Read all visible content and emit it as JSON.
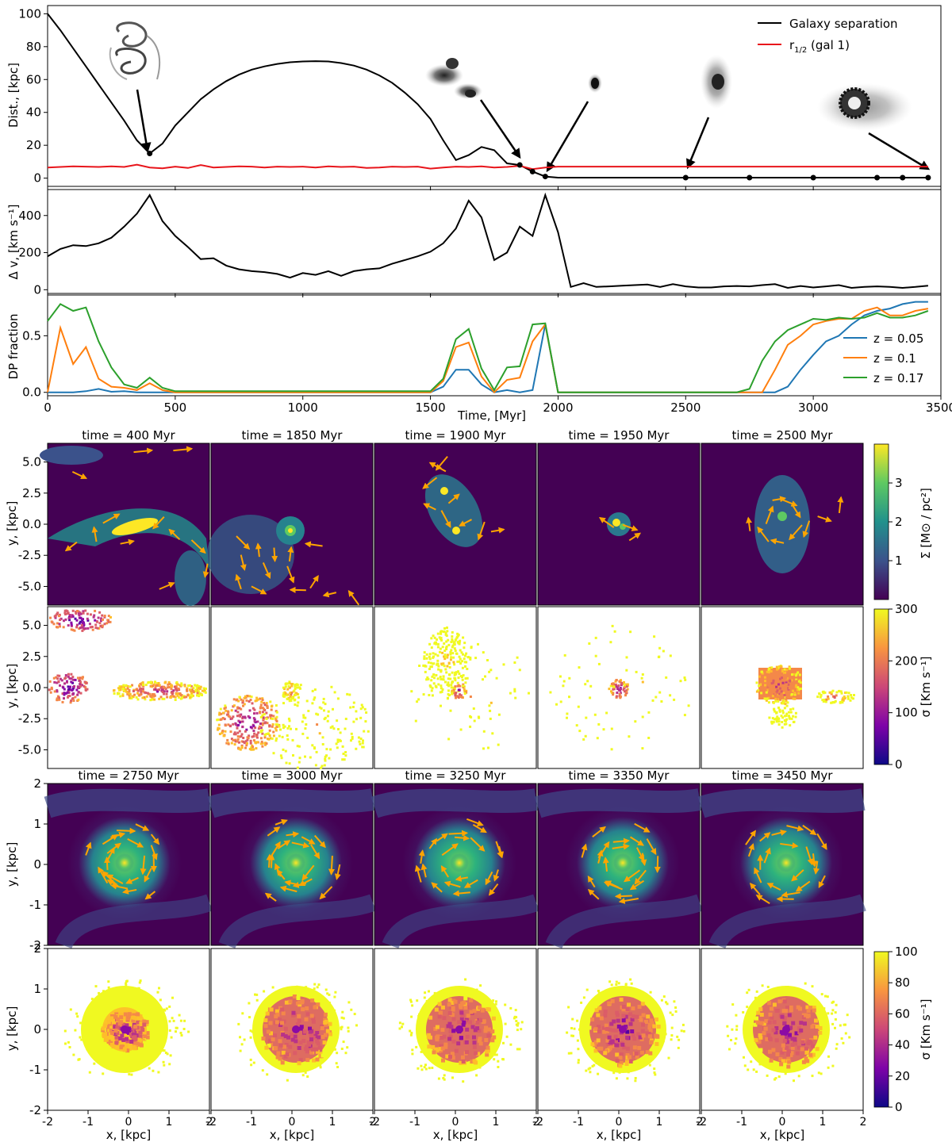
{
  "colors": {
    "black": "#000000",
    "red": "#e8151b",
    "blue": "#1f77b4",
    "orange": "#ff7f0e",
    "green": "#2ca02c",
    "arrow": "#ffa500",
    "viridis_low": "#440154",
    "viridis_mid": "#21918c",
    "viridis_high": "#fde725"
  },
  "chart_data": [
    {
      "type": "line",
      "title": "",
      "xlabel": "",
      "ylabel": "Dist., [kpc]",
      "xlim": [
        0,
        3500
      ],
      "ylim": [
        -5,
        105
      ],
      "yticks": [
        0,
        20,
        40,
        60,
        80,
        100
      ],
      "legend_position": "top-right",
      "series": [
        {
          "name": "Galaxy separation",
          "color": "black",
          "x": [
            0,
            50,
            100,
            150,
            200,
            250,
            300,
            350,
            400,
            450,
            500,
            550,
            600,
            650,
            700,
            750,
            800,
            850,
            900,
            950,
            1000,
            1050,
            1100,
            1150,
            1200,
            1250,
            1300,
            1350,
            1400,
            1450,
            1500,
            1550,
            1600,
            1650,
            1700,
            1750,
            1800,
            1850,
            1900,
            1950,
            2000,
            2100,
            2200,
            2300,
            2400,
            2500,
            2600,
            2700,
            2800,
            2900,
            3000,
            3100,
            3200,
            3300,
            3350,
            3400,
            3450
          ],
          "y": [
            100,
            90,
            79,
            68,
            57,
            46,
            35,
            23,
            15,
            21,
            32,
            40,
            48,
            54,
            59,
            63,
            66,
            68,
            69.5,
            70.5,
            71,
            71.2,
            71,
            70,
            68.5,
            66,
            62.5,
            58,
            52,
            45,
            36,
            23,
            11,
            14,
            19,
            17,
            9,
            8,
            4,
            1,
            0.3,
            0.3,
            0.3,
            0.3,
            0.3,
            0.3,
            0.3,
            0.3,
            0.3,
            0.3,
            0.3,
            0.3,
            0.3,
            0.3,
            0.3,
            0.3,
            0.3
          ]
        },
        {
          "name": "r_1/2 (gal 1)",
          "color": "red",
          "x": [
            0,
            50,
            100,
            150,
            200,
            250,
            300,
            350,
            400,
            450,
            500,
            550,
            600,
            650,
            700,
            750,
            800,
            850,
            900,
            950,
            1000,
            1050,
            1100,
            1150,
            1200,
            1250,
            1300,
            1350,
            1400,
            1450,
            1500,
            1550,
            1600,
            1650,
            1700,
            1750,
            1800,
            1850,
            1900,
            1950,
            2000,
            2100,
            2200,
            2300,
            2400,
            2500,
            2600,
            2700,
            2800,
            2900,
            3000,
            3100,
            3200,
            3300,
            3400,
            3450
          ],
          "y": [
            6.5,
            6.8,
            7.2,
            7.0,
            6.8,
            7.2,
            6.8,
            8.2,
            6.5,
            6.0,
            7.0,
            6.2,
            8.0,
            6.5,
            6.8,
            7.2,
            7.0,
            6.5,
            7.0,
            6.8,
            7.0,
            6.5,
            7.2,
            6.8,
            7.0,
            6.2,
            6.5,
            7.0,
            6.8,
            7.0,
            5.8,
            6.5,
            7.0,
            6.8,
            7.2,
            6.5,
            6.8,
            7.5,
            5.5,
            6.5,
            7.0,
            7.0,
            7.0,
            7.0,
            7.0,
            7.0,
            7.0,
            7.0,
            7.0,
            7.0,
            7.0,
            7.0,
            7.0,
            7.0,
            7.0,
            7.0
          ]
        }
      ],
      "markers_x": [
        400,
        1850,
        1900,
        1950,
        2500,
        2750,
        3000,
        3250,
        3350,
        3450
      ],
      "annotations": [
        "snapshot 400 Myr",
        "snapshot 1850 Myr",
        "snapshot 1950 Myr",
        "snapshot 2500 Myr",
        "snapshot 3450 Myr"
      ]
    },
    {
      "type": "line",
      "xlabel": "",
      "ylabel": "Δ v, [km s⁻¹]",
      "xlim": [
        0,
        3500
      ],
      "ylim": [
        -20,
        540
      ],
      "yticks": [
        0,
        200,
        400
      ],
      "series": [
        {
          "name": "Delta v",
          "color": "black",
          "x": [
            0,
            50,
            100,
            150,
            200,
            250,
            300,
            350,
            400,
            450,
            500,
            550,
            600,
            650,
            700,
            750,
            800,
            850,
            900,
            950,
            1000,
            1050,
            1100,
            1150,
            1200,
            1250,
            1300,
            1350,
            1400,
            1450,
            1500,
            1550,
            1600,
            1650,
            1700,
            1750,
            1800,
            1850,
            1900,
            1950,
            2000,
            2050,
            2100,
            2150,
            2200,
            2250,
            2300,
            2350,
            2400,
            2450,
            2500,
            2550,
            2600,
            2650,
            2700,
            2750,
            2800,
            2850,
            2900,
            2950,
            3000,
            3050,
            3100,
            3150,
            3200,
            3250,
            3300,
            3350,
            3400,
            3450
          ],
          "y": [
            180,
            220,
            240,
            235,
            250,
            280,
            340,
            410,
            510,
            370,
            290,
            230,
            165,
            170,
            130,
            110,
            100,
            95,
            85,
            65,
            90,
            80,
            100,
            75,
            100,
            110,
            115,
            140,
            160,
            180,
            205,
            250,
            330,
            480,
            390,
            160,
            200,
            340,
            290,
            510,
            310,
            15,
            35,
            15,
            18,
            22,
            25,
            28,
            15,
            30,
            18,
            12,
            12,
            18,
            20,
            18,
            25,
            30,
            10,
            20,
            12,
            18,
            25,
            10,
            15,
            18,
            15,
            10,
            15,
            22
          ]
        }
      ]
    },
    {
      "type": "line",
      "xlabel": "Time, [Myr]",
      "ylabel": "DP fraction",
      "xlim": [
        0,
        3500
      ],
      "ylim": [
        -0.03,
        0.86
      ],
      "yticks": [
        0.0,
        0.5
      ],
      "xticks": [
        0,
        500,
        1000,
        1500,
        2000,
        2500,
        3000,
        3500
      ],
      "legend_position": "right",
      "series": [
        {
          "name": "z = 0.05",
          "color": "blue",
          "x": [
            0,
            50,
            100,
            150,
            200,
            250,
            300,
            350,
            400,
            450,
            500,
            1500,
            1550,
            1600,
            1650,
            1700,
            1750,
            1800,
            1850,
            1900,
            1950,
            2000,
            2800,
            2850,
            2900,
            2950,
            3000,
            3050,
            3100,
            3150,
            3200,
            3250,
            3300,
            3350,
            3400,
            3450
          ],
          "y": [
            0,
            0,
            0,
            0.01,
            0.03,
            0.005,
            0.01,
            0,
            0,
            0,
            0,
            0,
            0.05,
            0.2,
            0.2,
            0.07,
            0,
            0.02,
            0,
            0.02,
            0.6,
            0,
            0,
            0,
            0.05,
            0.2,
            0.33,
            0.45,
            0.5,
            0.6,
            0.68,
            0.72,
            0.74,
            0.78,
            0.8,
            0.8
          ]
        },
        {
          "name": "z = 0.1",
          "color": "orange",
          "x": [
            0,
            50,
            100,
            150,
            200,
            250,
            300,
            350,
            400,
            450,
            500,
            1500,
            1550,
            1600,
            1650,
            1700,
            1750,
            1800,
            1850,
            1900,
            1950,
            2000,
            2750,
            2800,
            2850,
            2900,
            2950,
            3000,
            3050,
            3100,
            3150,
            3200,
            3250,
            3300,
            3350,
            3400,
            3450
          ],
          "y": [
            0,
            0.57,
            0.25,
            0.4,
            0.12,
            0.05,
            0.04,
            0.02,
            0.08,
            0.02,
            0,
            0,
            0.1,
            0.4,
            0.44,
            0.14,
            0,
            0.11,
            0.13,
            0.45,
            0.6,
            0,
            0,
            0,
            0.2,
            0.42,
            0.5,
            0.6,
            0.63,
            0.65,
            0.65,
            0.72,
            0.75,
            0.68,
            0.68,
            0.72,
            0.74
          ]
        },
        {
          "name": "z = 0.17",
          "color": "green",
          "x": [
            0,
            50,
            100,
            150,
            200,
            250,
            300,
            350,
            400,
            450,
            500,
            1500,
            1550,
            1600,
            1650,
            1700,
            1750,
            1800,
            1850,
            1900,
            1950,
            2000,
            2700,
            2750,
            2800,
            2850,
            2900,
            2950,
            3000,
            3050,
            3100,
            3150,
            3200,
            3250,
            3300,
            3350,
            3400,
            3450
          ],
          "y": [
            0.63,
            0.78,
            0.72,
            0.75,
            0.45,
            0.22,
            0.07,
            0.04,
            0.13,
            0.04,
            0.01,
            0.01,
            0.12,
            0.47,
            0.56,
            0.21,
            0.02,
            0.22,
            0.23,
            0.6,
            0.61,
            0,
            0,
            0.03,
            0.28,
            0.45,
            0.55,
            0.6,
            0.65,
            0.64,
            0.66,
            0.65,
            0.66,
            0.7,
            0.66,
            0.66,
            0.68,
            0.72
          ]
        }
      ]
    },
    {
      "type": "heatmap",
      "grid": "2 rows x 5 panels",
      "panel_titles": [
        "time = 400 Myr",
        "time = 1850 Myr",
        "time = 1900 Myr",
        "time = 1950 Myr",
        "time = 2500 Myr"
      ],
      "ylabel": "y, [kpc]",
      "ylim": [
        -6.5,
        6.5
      ],
      "yticks": [
        -5.0,
        -2.5,
        0.0,
        2.5,
        5.0
      ],
      "row1_quantity": "surface density with velocity arrows",
      "row1_colorbar": {
        "label": "Σ [M⊙ / pc²]",
        "range": [
          0,
          4
        ],
        "ticks": [
          1,
          2,
          3
        ]
      },
      "row2_quantity": "velocity dispersion",
      "row2_colorbar": {
        "label": "σ [Km s⁻¹]",
        "range": [
          0,
          300
        ],
        "ticks": [
          0,
          100,
          200,
          300
        ]
      },
      "blob_centers_kpc": [
        [
          0.3,
          0.2
        ],
        [
          0.0,
          0.0
        ],
        [
          -0.2,
          1.5
        ],
        [
          0.0,
          0.0
        ],
        [
          0.0,
          0.0
        ]
      ]
    },
    {
      "type": "heatmap",
      "grid": "2 rows x 5 panels",
      "panel_titles": [
        "time = 2750 Myr",
        "time = 3000 Myr",
        "time = 3250 Myr",
        "time = 3350 Myr",
        "time = 3450 Myr"
      ],
      "xlabel": "x, [kpc]",
      "ylabel": "y, [kpc]",
      "xlim": [
        -2,
        2
      ],
      "ylim": [
        -2,
        2
      ],
      "xticks": [
        -2,
        -1,
        0,
        1,
        2
      ],
      "yticks": [
        -2,
        -1,
        0,
        1,
        2
      ],
      "row1_quantity": "surface density with velocity arrows (rotating disc)",
      "row2_quantity": "velocity dispersion",
      "row2_colorbar": {
        "label": "σ [Km s⁻¹]",
        "range": [
          0,
          100
        ],
        "ticks": [
          0,
          20,
          40,
          60,
          80,
          100
        ]
      }
    }
  ]
}
